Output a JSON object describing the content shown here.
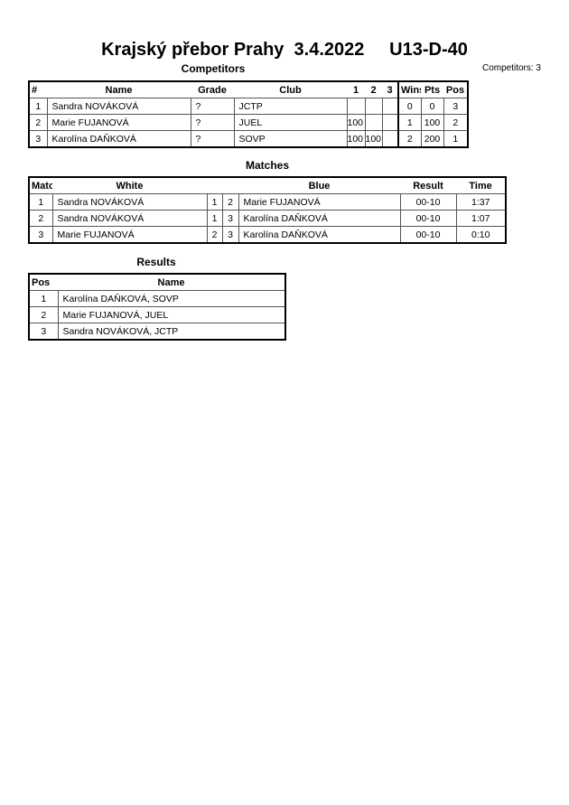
{
  "title": "Krajský přebor Prahy  3.4.2022     U13-D-40",
  "competitors_heading": "Competitors",
  "competitors_count": "Competitors: 3",
  "competitors": {
    "headers": [
      "#",
      "Name",
      "Grade",
      "Club",
      "1",
      "2",
      "3",
      "Wins",
      "Pts",
      "Pos"
    ],
    "rows": [
      [
        "1",
        "Sandra NOVÁKOVÁ",
        "?",
        "JCTP",
        "",
        "",
        "",
        "0",
        "0",
        "3"
      ],
      [
        "2",
        "Marie FUJANOVÁ",
        "?",
        "JUEL",
        "100",
        "",
        "",
        "1",
        "100",
        "2"
      ],
      [
        "3",
        "Karolína DAŇKOVÁ",
        "?",
        "SOVP",
        "100",
        "100",
        "",
        "2",
        "200",
        "1"
      ]
    ]
  },
  "matches_heading": "Matches",
  "matches": {
    "headers": [
      "Match",
      "White",
      "",
      "",
      "Blue",
      "Result",
      "Time"
    ],
    "rows": [
      [
        "1",
        "Sandra NOVÁKOVÁ",
        "1",
        "2",
        "Marie FUJANOVÁ",
        "00-10",
        "1:37"
      ],
      [
        "2",
        "Sandra NOVÁKOVÁ",
        "1",
        "3",
        "Karolína DAŇKOVÁ",
        "00-10",
        "1:07"
      ],
      [
        "3",
        "Marie FUJANOVÁ",
        "2",
        "3",
        "Karolína DAŇKOVÁ",
        "00-10",
        "0:10"
      ]
    ]
  },
  "results_heading": "Results",
  "results": {
    "headers": [
      "Pos",
      "Name"
    ],
    "rows": [
      [
        "1",
        "Karolína DAŇKOVÁ, SOVP"
      ],
      [
        "2",
        "Marie FUJANOVÁ, JUEL"
      ],
      [
        "3",
        "Sandra NOVÁKOVÁ, JCTP"
      ]
    ]
  }
}
